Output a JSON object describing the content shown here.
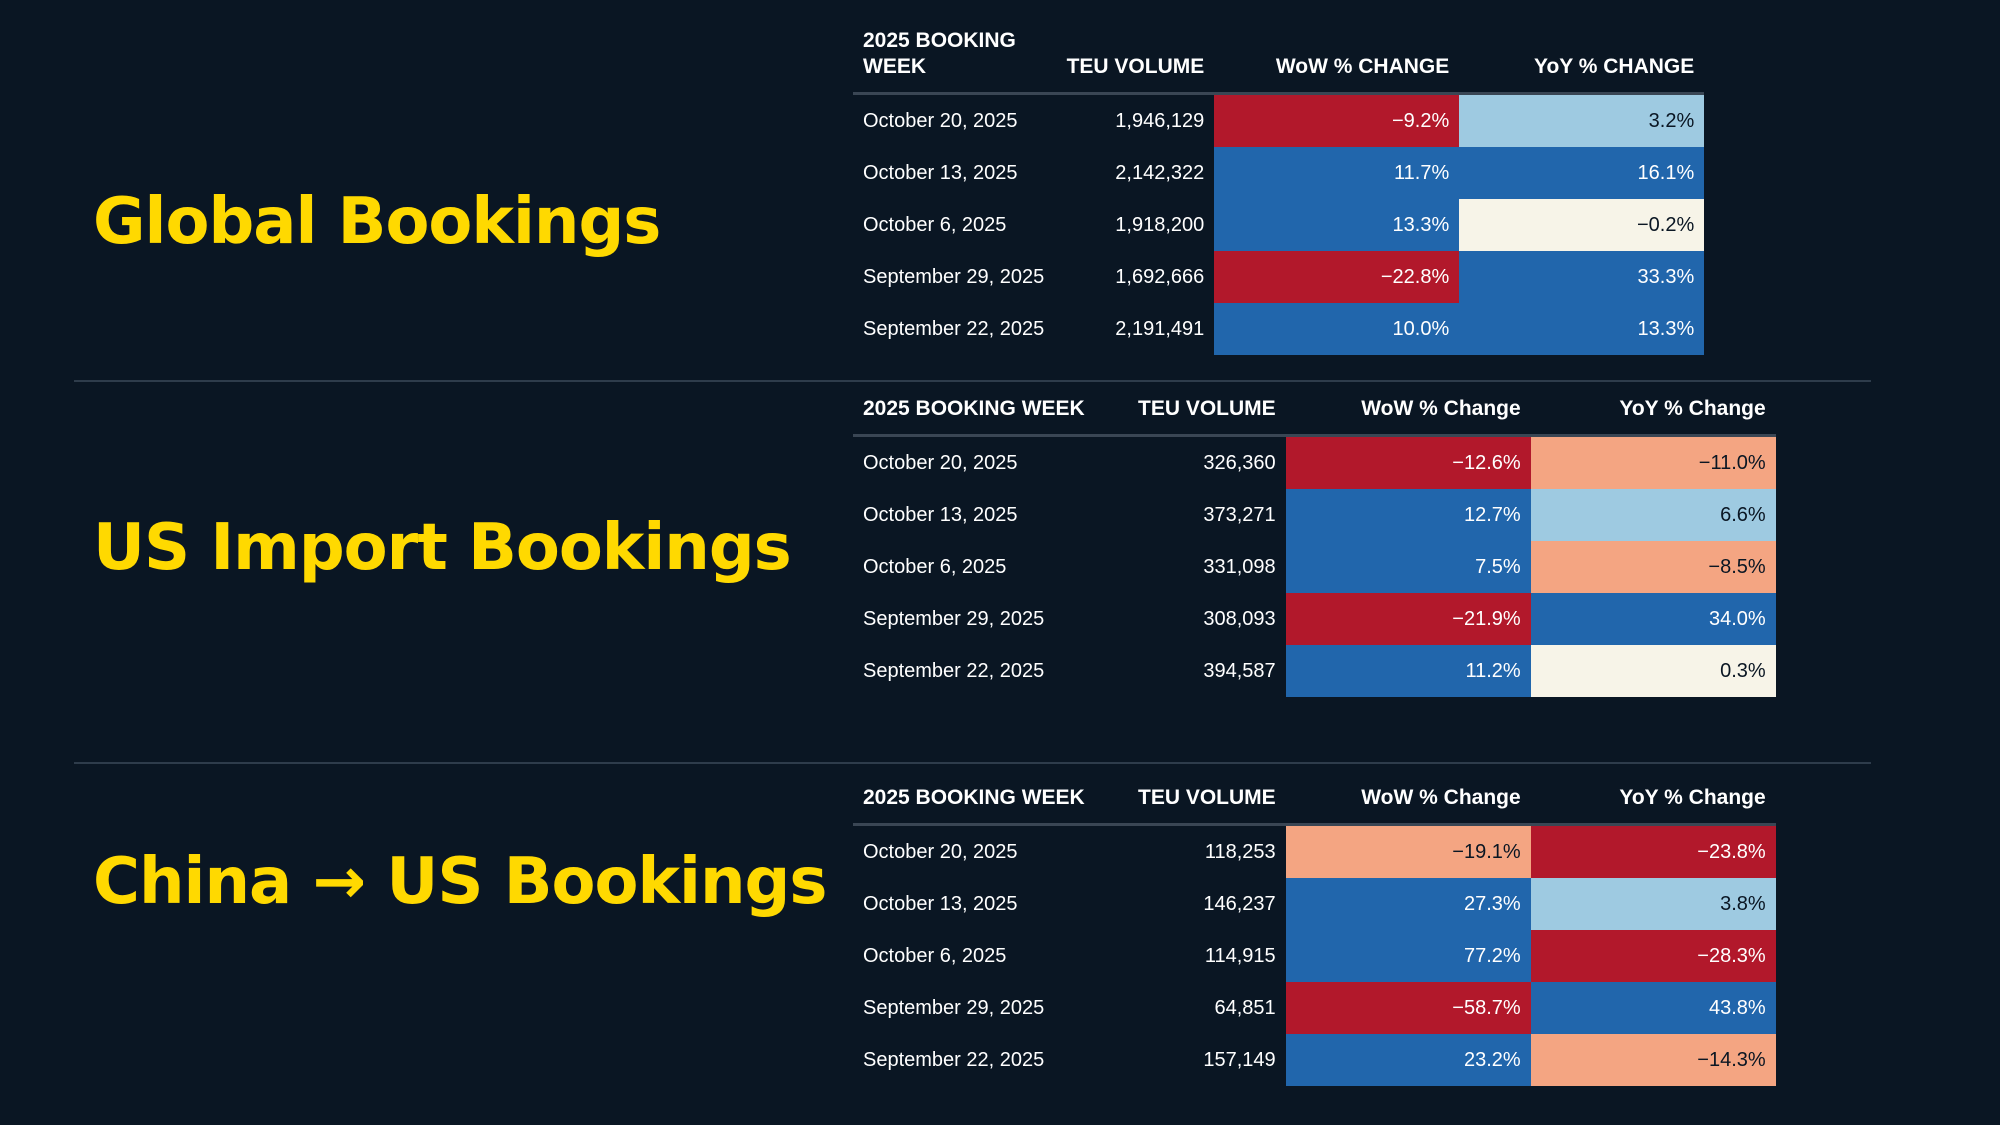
{
  "sections": [
    {
      "title": "Global Bookings",
      "columns": [
        "2025 BOOKING WEEK",
        "TEU VOLUME",
        "WoW % CHANGE",
        "YoY % CHANGE"
      ],
      "rows": [
        {
          "week": "October 20, 2025",
          "teu": "1,946,129",
          "wow": "−9.2%",
          "yoy": "3.2%"
        },
        {
          "week": "October 13, 2025",
          "teu": "2,142,322",
          "wow": "11.7%",
          "yoy": "16.1%"
        },
        {
          "week": "October 6, 2025",
          "teu": "1,918,200",
          "wow": "13.3%",
          "yoy": "−0.2%"
        },
        {
          "week": "September 29, 2025",
          "teu": "1,692,666",
          "wow": "−22.8%",
          "yoy": "33.3%"
        },
        {
          "week": "September 22, 2025",
          "teu": "2,191,491",
          "wow": "10.0%",
          "yoy": "13.3%"
        }
      ]
    },
    {
      "title": "US Import Bookings",
      "columns": [
        "2025 BOOKING WEEK",
        "TEU VOLUME",
        "WoW % Change",
        "YoY % Change"
      ],
      "rows": [
        {
          "week": "October 20, 2025",
          "teu": "326,360",
          "wow": "−12.6%",
          "yoy": "−11.0%"
        },
        {
          "week": "October 13, 2025",
          "teu": "373,271",
          "wow": "12.7%",
          "yoy": "6.6%"
        },
        {
          "week": "October 6, 2025",
          "teu": "331,098",
          "wow": "7.5%",
          "yoy": "−8.5%"
        },
        {
          "week": "September 29, 2025",
          "teu": "308,093",
          "wow": "−21.9%",
          "yoy": "34.0%"
        },
        {
          "week": "September 22, 2025",
          "teu": "394,587",
          "wow": "11.2%",
          "yoy": "0.3%"
        }
      ]
    },
    {
      "title": "China → US Bookings",
      "columns": [
        "2025 BOOKING WEEK",
        "TEU VOLUME",
        "WoW % Change",
        "YoY % Change"
      ],
      "rows": [
        {
          "week": "October 20, 2025",
          "teu": "118,253",
          "wow": "−19.1%",
          "yoy": "−23.8%"
        },
        {
          "week": "October 13, 2025",
          "teu": "146,237",
          "wow": "27.3%",
          "yoy": "3.8%"
        },
        {
          "week": "October 6, 2025",
          "teu": "114,915",
          "wow": "77.2%",
          "yoy": "−28.3%"
        },
        {
          "week": "September 29, 2025",
          "teu": "64,851",
          "wow": "−58.7%",
          "yoy": "43.8%"
        },
        {
          "week": "September 22, 2025",
          "teu": "157,149",
          "wow": "23.2%",
          "yoy": "−14.3%"
        }
      ]
    }
  ],
  "colors": {
    "background": "#0a1623",
    "title": "#ffd900",
    "strong_positive": "#2166ac",
    "light_positive": "#9ecae1",
    "neutral": "#f7f4e8",
    "light_negative": "#f4a582",
    "strong_negative": "#b2182b"
  },
  "chart_data": [
    {
      "type": "table",
      "title": "Global Bookings",
      "columns": [
        "2025 BOOKING WEEK",
        "TEU VOLUME",
        "WoW % CHANGE",
        "YoY % CHANGE"
      ],
      "categories": [
        "October 20, 2025",
        "October 13, 2025",
        "October 6, 2025",
        "September 29, 2025",
        "September 22, 2025"
      ],
      "series": [
        {
          "name": "TEU VOLUME",
          "values": [
            1946129,
            2142322,
            1918200,
            1692666,
            2191491
          ]
        },
        {
          "name": "WoW % CHANGE",
          "values": [
            -9.2,
            11.7,
            13.3,
            -22.8,
            10.0
          ]
        },
        {
          "name": "YoY % CHANGE",
          "values": [
            3.2,
            16.1,
            -0.2,
            33.3,
            13.3
          ]
        }
      ]
    },
    {
      "type": "table",
      "title": "US Import Bookings",
      "columns": [
        "2025 BOOKING WEEK",
        "TEU VOLUME",
        "WoW % Change",
        "YoY % Change"
      ],
      "categories": [
        "October 20, 2025",
        "October 13, 2025",
        "October 6, 2025",
        "September 29, 2025",
        "September 22, 2025"
      ],
      "series": [
        {
          "name": "TEU VOLUME",
          "values": [
            326360,
            373271,
            331098,
            308093,
            394587
          ]
        },
        {
          "name": "WoW % Change",
          "values": [
            -12.6,
            12.7,
            7.5,
            -21.9,
            11.2
          ]
        },
        {
          "name": "YoY % Change",
          "values": [
            -11.0,
            6.6,
            -8.5,
            34.0,
            0.3
          ]
        }
      ]
    },
    {
      "type": "table",
      "title": "China → US Bookings",
      "columns": [
        "2025 BOOKING WEEK",
        "TEU VOLUME",
        "WoW % Change",
        "YoY % Change"
      ],
      "categories": [
        "October 20, 2025",
        "October 13, 2025",
        "October 6, 2025",
        "September 29, 2025",
        "September 22, 2025"
      ],
      "series": [
        {
          "name": "TEU VOLUME",
          "values": [
            118253,
            146237,
            114915,
            64851,
            157149
          ]
        },
        {
          "name": "WoW % Change",
          "values": [
            -19.1,
            27.3,
            77.2,
            -58.7,
            23.2
          ]
        },
        {
          "name": "YoY % Change",
          "values": [
            -23.8,
            3.8,
            -28.3,
            43.8,
            -14.3
          ]
        }
      ]
    }
  ]
}
